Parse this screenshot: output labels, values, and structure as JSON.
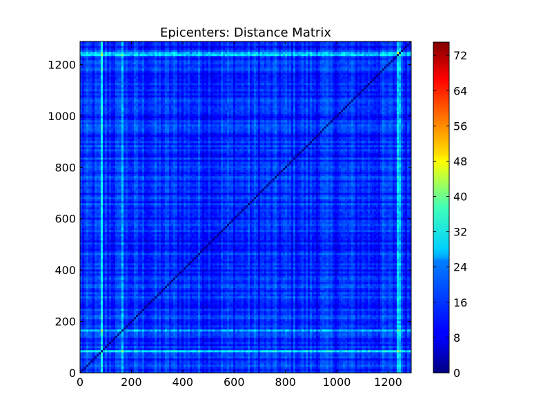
{
  "chart_data": {
    "type": "heatmap",
    "title": "Epicenters: Distance Matrix",
    "xlabel": "",
    "ylabel": "",
    "matrix_size": 1290,
    "xlim": [
      0,
      1290
    ],
    "ylim": [
      0,
      1290
    ],
    "x_ticks": [
      0,
      200,
      400,
      600,
      800,
      1000,
      1200
    ],
    "y_ticks": [
      0,
      200,
      400,
      600,
      800,
      1000,
      1200
    ],
    "colorbar": {
      "range": [
        0,
        75
      ],
      "ticks": [
        0,
        8,
        16,
        24,
        32,
        40,
        48,
        56,
        64,
        72
      ],
      "colormap": "jet"
    },
    "value_summary": {
      "typical_range": [
        5,
        20
      ],
      "diagonal": 0,
      "bright_bands_near": [
        85,
        165,
        1240
      ],
      "bright_band_values": [
        24,
        32
      ]
    }
  }
}
